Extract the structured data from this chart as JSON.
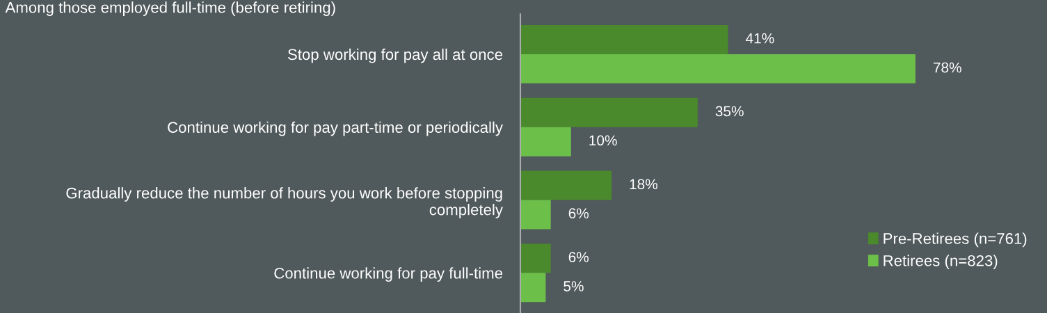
{
  "chart_data": {
    "type": "bar",
    "orientation": "horizontal",
    "subtitle": "Among those employed full-time (before retiring)",
    "categories": [
      "Stop working for pay all at once",
      "Continue working for pay part-time or periodically",
      "Gradually reduce the number of hours you work before stopping completely",
      "Continue working for pay full-time"
    ],
    "series": [
      {
        "name": "Pre-Retirees (n=761)",
        "color": "#4a8a2c",
        "values": [
          41,
          35,
          18,
          6
        ],
        "value_labels": [
          "41%",
          "35%",
          "18%",
          "6%"
        ]
      },
      {
        "name": "Retirees (n=823)",
        "color": "#6cc04a",
        "values": [
          78,
          10,
          6,
          5
        ],
        "value_labels": [
          "78%",
          "10%",
          "6%",
          "5%"
        ]
      }
    ],
    "legend": "bottom right",
    "grid": false
  }
}
